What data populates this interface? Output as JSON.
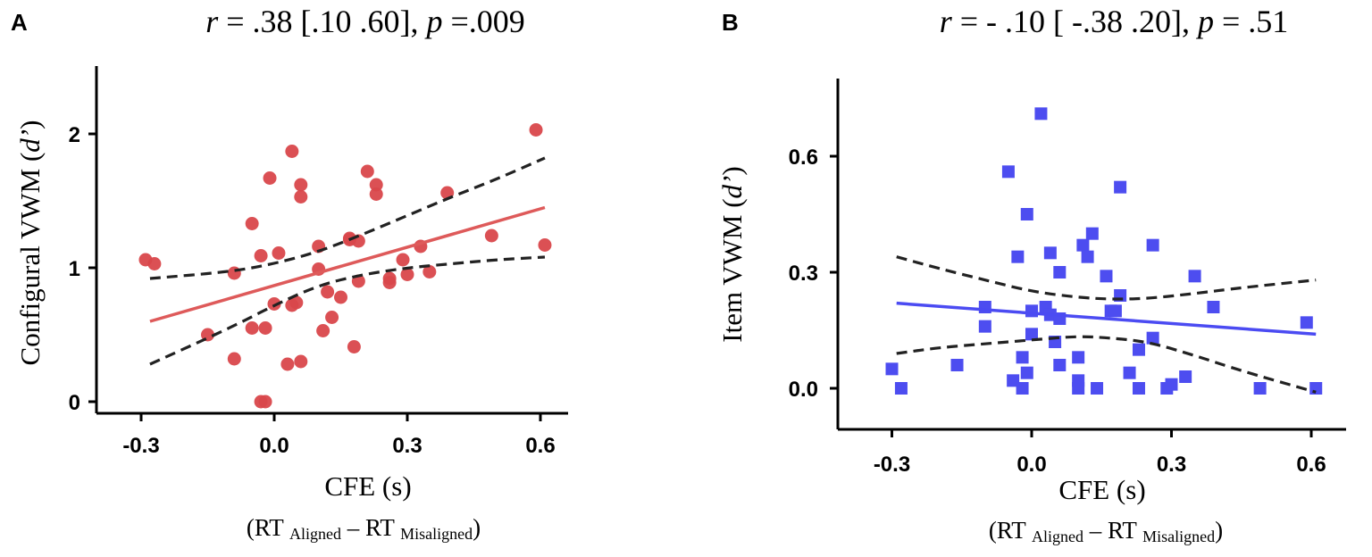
{
  "chart_data": [
    {
      "type": "scatter",
      "panel_label": "A",
      "title": {
        "r_sym": "r",
        "r_text": " = .38 [.10 .60], ",
        "p_sym": "p",
        "p_text": " =.009"
      },
      "xlabel": "CFE (s)",
      "xsublabel": {
        "open": "(RT ",
        "sub1": "Aligned",
        "mid": " – RT ",
        "sub2": "Misaligned",
        "close": ")"
      },
      "ylabel": {
        "pre": "Configural VWM (",
        "sym": "d’",
        "post": ")"
      },
      "xlim": [
        -0.38,
        0.68
      ],
      "ylim": [
        -0.1,
        2.5
      ],
      "xticks": [
        -0.3,
        0.0,
        0.3,
        0.6
      ],
      "xtick_labels": [
        "-0.3",
        "0.0",
        "0.3",
        "0.6"
      ],
      "yticks": [
        0,
        1,
        2
      ],
      "ytick_labels": [
        "0",
        "1",
        "2"
      ],
      "marker": "circle",
      "color": "#d9474b",
      "fit": {
        "x": [
          -0.28,
          0.61
        ],
        "y": [
          0.6,
          1.45
        ],
        "color": "#de5a5a"
      },
      "ci_upper": {
        "x": [
          -0.28,
          -0.1,
          0.0,
          0.1,
          0.2,
          0.3,
          0.4,
          0.5,
          0.61
        ],
        "y": [
          0.92,
          0.97,
          1.03,
          1.12,
          1.25,
          1.39,
          1.53,
          1.66,
          1.82
        ]
      },
      "ci_lower": {
        "x": [
          -0.28,
          -0.1,
          0.0,
          0.1,
          0.2,
          0.3,
          0.4,
          0.5,
          0.61
        ],
        "y": [
          0.28,
          0.55,
          0.72,
          0.87,
          0.95,
          1.0,
          1.03,
          1.06,
          1.08
        ]
      },
      "points": {
        "x": [
          -0.29,
          -0.27,
          -0.15,
          -0.09,
          -0.09,
          -0.05,
          -0.05,
          -0.03,
          -0.03,
          -0.02,
          -0.02,
          -0.01,
          0.0,
          0.01,
          0.03,
          0.04,
          0.04,
          0.05,
          0.06,
          0.06,
          0.06,
          0.1,
          0.1,
          0.11,
          0.12,
          0.13,
          0.15,
          0.17,
          0.17,
          0.18,
          0.19,
          0.19,
          0.21,
          0.23,
          0.23,
          0.26,
          0.26,
          0.29,
          0.3,
          0.33,
          0.35,
          0.39,
          0.49,
          0.59,
          0.61
        ],
        "y": [
          1.06,
          1.03,
          0.5,
          0.96,
          0.32,
          1.33,
          0.55,
          1.09,
          0.0,
          0.55,
          0.0,
          1.67,
          0.73,
          1.11,
          0.28,
          0.72,
          1.87,
          0.74,
          1.62,
          1.53,
          0.3,
          1.16,
          0.99,
          0.53,
          0.82,
          0.63,
          0.78,
          1.22,
          1.21,
          0.41,
          1.2,
          0.9,
          1.72,
          1.62,
          1.55,
          0.92,
          0.89,
          1.06,
          0.95,
          1.16,
          0.97,
          1.56,
          1.24,
          2.03,
          1.17
        ]
      }
    },
    {
      "type": "scatter",
      "panel_label": "B",
      "title": {
        "r_sym": "r",
        "r_text": " = - .10 [ -.38 .20], ",
        "p_sym": "p",
        "p_text": " = .51"
      },
      "xlabel": "CFE (s)",
      "xsublabel": {
        "open": "(RT ",
        "sub1": "Aligned",
        "mid": " – RT ",
        "sub2": "Misaligned",
        "close": ")"
      },
      "ylabel": {
        "pre": "Item VWM (",
        "sym": "d’",
        "post": ")"
      },
      "xlim": [
        -0.42,
        0.66
      ],
      "ylim": [
        -0.1,
        0.8
      ],
      "xticks": [
        -0.3,
        0.0,
        0.3,
        0.6
      ],
      "xtick_labels": [
        "-0.3",
        "0.0",
        "0.3",
        "0.6"
      ],
      "yticks": [
        0.0,
        0.3,
        0.6
      ],
      "ytick_labels": [
        "0.0",
        "0.3",
        "0.6"
      ],
      "marker": "square",
      "color": "#4d4df0",
      "fit": {
        "x": [
          -0.29,
          0.61
        ],
        "y": [
          0.22,
          0.14
        ],
        "color": "#4b4bf2"
      },
      "ci_upper": {
        "x": [
          -0.29,
          -0.2,
          -0.1,
          0.0,
          0.1,
          0.17,
          0.25,
          0.35,
          0.45,
          0.61
        ],
        "y": [
          0.34,
          0.31,
          0.28,
          0.25,
          0.235,
          0.23,
          0.232,
          0.245,
          0.26,
          0.28
        ]
      },
      "ci_lower": {
        "x": [
          -0.29,
          -0.2,
          -0.1,
          0.0,
          0.1,
          0.17,
          0.25,
          0.35,
          0.45,
          0.61
        ],
        "y": [
          0.09,
          0.105,
          0.115,
          0.125,
          0.135,
          0.13,
          0.12,
          0.085,
          0.045,
          -0.01
        ]
      },
      "points": {
        "x": [
          -0.3,
          -0.28,
          -0.16,
          -0.1,
          -0.1,
          -0.05,
          -0.04,
          -0.03,
          -0.02,
          -0.02,
          -0.01,
          -0.01,
          0.0,
          0.0,
          0.02,
          0.03,
          0.04,
          0.04,
          0.05,
          0.06,
          0.06,
          0.06,
          0.1,
          0.1,
          0.1,
          0.11,
          0.12,
          0.13,
          0.14,
          0.16,
          0.17,
          0.18,
          0.19,
          0.19,
          0.21,
          0.23,
          0.23,
          0.26,
          0.26,
          0.29,
          0.3,
          0.33,
          0.35,
          0.39,
          0.49,
          0.59,
          0.61
        ],
        "y": [
          0.05,
          0.0,
          0.06,
          0.21,
          0.16,
          0.56,
          0.02,
          0.34,
          0.0,
          0.08,
          0.04,
          0.45,
          0.2,
          0.14,
          0.71,
          0.21,
          0.35,
          0.19,
          0.12,
          0.3,
          0.18,
          0.06,
          0.08,
          0.02,
          0.0,
          0.37,
          0.34,
          0.4,
          0.0,
          0.29,
          0.2,
          0.2,
          0.52,
          0.24,
          0.04,
          0.0,
          0.1,
          0.37,
          0.13,
          0.0,
          0.01,
          0.03,
          0.29,
          0.21,
          0.0,
          0.17,
          0.0
        ]
      }
    }
  ]
}
